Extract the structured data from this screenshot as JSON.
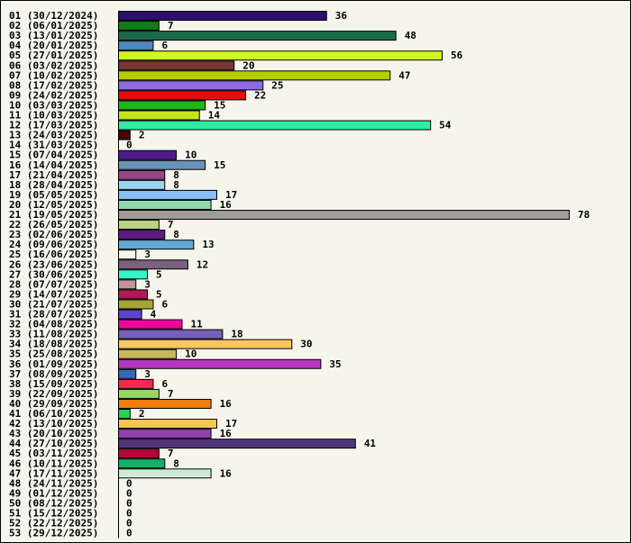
{
  "chart_data": {
    "type": "bar",
    "orientation": "horizontal",
    "title": "",
    "xlabel": "",
    "ylabel": "",
    "xlim": [
      0,
      78
    ],
    "grid": false,
    "categories": [
      "01 (30/12/2024)",
      "02 (06/01/2025)",
      "03 (13/01/2025)",
      "04 (20/01/2025)",
      "05 (27/01/2025)",
      "06 (03/02/2025)",
      "07 (10/02/2025)",
      "08 (17/02/2025)",
      "09 (24/02/2025)",
      "10 (03/03/2025)",
      "11 (10/03/2025)",
      "12 (17/03/2025)",
      "13 (24/03/2025)",
      "14 (31/03/2025)",
      "15 (07/04/2025)",
      "16 (14/04/2025)",
      "17 (21/04/2025)",
      "18 (28/04/2025)",
      "19 (05/05/2025)",
      "20 (12/05/2025)",
      "21 (19/05/2025)",
      "22 (26/05/2025)",
      "23 (02/06/2025)",
      "24 (09/06/2025)",
      "25 (16/06/2025)",
      "26 (23/06/2025)",
      "27 (30/06/2025)",
      "28 (07/07/2025)",
      "29 (14/07/2025)",
      "30 (21/07/2025)",
      "31 (28/07/2025)",
      "32 (04/08/2025)",
      "33 (11/08/2025)",
      "34 (18/08/2025)",
      "35 (25/08/2025)",
      "36 (01/09/2025)",
      "37 (08/09/2025)",
      "38 (15/09/2025)",
      "39 (22/09/2025)",
      "40 (29/09/2025)",
      "41 (06/10/2025)",
      "42 (13/10/2025)",
      "43 (20/10/2025)",
      "44 (27/10/2025)",
      "45 (03/11/2025)",
      "46 (10/11/2025)",
      "47 (17/11/2025)",
      "48 (24/11/2025)",
      "49 (01/12/2025)",
      "50 (08/12/2025)",
      "51 (15/12/2025)",
      "52 (22/12/2025)",
      "53 (29/12/2025)"
    ],
    "values": [
      36,
      7,
      48,
      6,
      56,
      20,
      47,
      25,
      22,
      15,
      14,
      54,
      2,
      0,
      10,
      15,
      8,
      8,
      17,
      16,
      78,
      7,
      8,
      13,
      3,
      12,
      5,
      3,
      5,
      6,
      4,
      11,
      18,
      30,
      10,
      35,
      3,
      6,
      7,
      16,
      2,
      17,
      16,
      41,
      7,
      8,
      16,
      0,
      0,
      0,
      0,
      0,
      0
    ],
    "colors": [
      "#2e0f6e",
      "#0b7d16",
      "#1a6b4a",
      "#4a88c0",
      "#d0f81e",
      "#7b3430",
      "#b3cf04",
      "#8e6ae8",
      "#e80c0c",
      "#1fb71a",
      "#c4e61c",
      "#32eba0",
      "#4d0508",
      "#ffffff",
      "#4f1b8a",
      "#6a93b8",
      "#964683",
      "#9dd4ef",
      "#88bff8",
      "#8fd8b0",
      "#9e9c95",
      "#bcd186",
      "#5f1b85",
      "#62a8d4",
      "#f3f5ee",
      "#7a617e",
      "#30f5c8",
      "#c0959a",
      "#b01a58",
      "#a6a636",
      "#5a45cc",
      "#f004a0",
      "#7660bb",
      "#f9c760",
      "#cab65c",
      "#b438c0",
      "#3468b8",
      "#fb284e",
      "#98d662",
      "#f07e10",
      "#20d850",
      "#f4c850",
      "#9440b0",
      "#513578",
      "#b40637",
      "#10b365",
      "#cdecd5",
      "#ffffff",
      "#ffffff",
      "#ffffff",
      "#ffffff",
      "#ffffff",
      "#ffffff"
    ]
  }
}
